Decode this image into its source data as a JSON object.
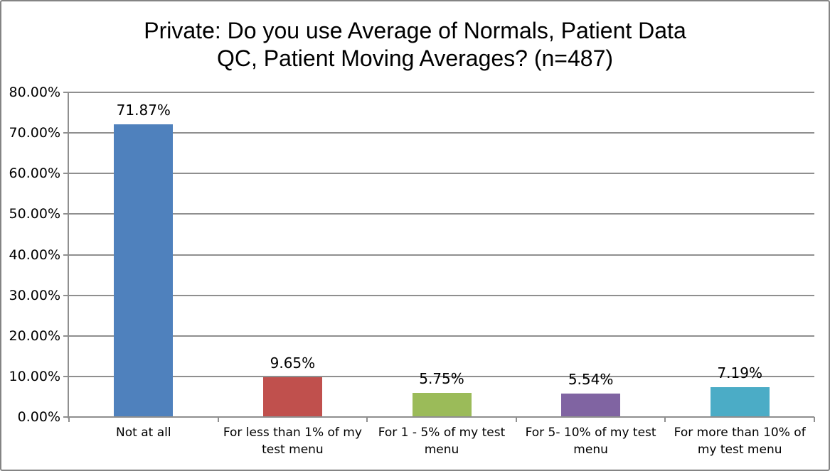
{
  "title": {
    "line1": "Private: Do you use Average of Normals, Patient Data",
    "line2": "QC, Patient Moving Averages? (n=487)"
  },
  "chart_data": {
    "type": "bar",
    "title": "Private: Do you use Average of Normals, Patient Data QC, Patient Moving Averages? (n=487)",
    "categories": [
      "Not at all",
      "For less than 1% of my test menu",
      "For 1 - 5% of my test menu",
      "For 5- 10% of my test menu",
      "For more than 10% of my test menu"
    ],
    "values": [
      71.87,
      9.65,
      5.75,
      5.54,
      7.19
    ],
    "data_labels": [
      "71.87%",
      "9.65%",
      "5.75%",
      "5.54%",
      "7.19%"
    ],
    "bar_colors": [
      "#4F81BD",
      "#C0504D",
      "#9BBB59",
      "#8064A2",
      "#4BACC6"
    ],
    "xlabel": "",
    "ylabel": "",
    "ylim": [
      0,
      80
    ],
    "y_tick_step": 10,
    "y_tick_labels": [
      "0.00%",
      "10.00%",
      "20.00%",
      "30.00%",
      "40.00%",
      "50.00%",
      "60.00%",
      "70.00%",
      "80.00%"
    ],
    "grid": true,
    "legend": false
  },
  "colors": {
    "grid_axis": "#8f8f8f",
    "frame_border": "#848484",
    "background": "#ffffff",
    "text": "#000000"
  }
}
